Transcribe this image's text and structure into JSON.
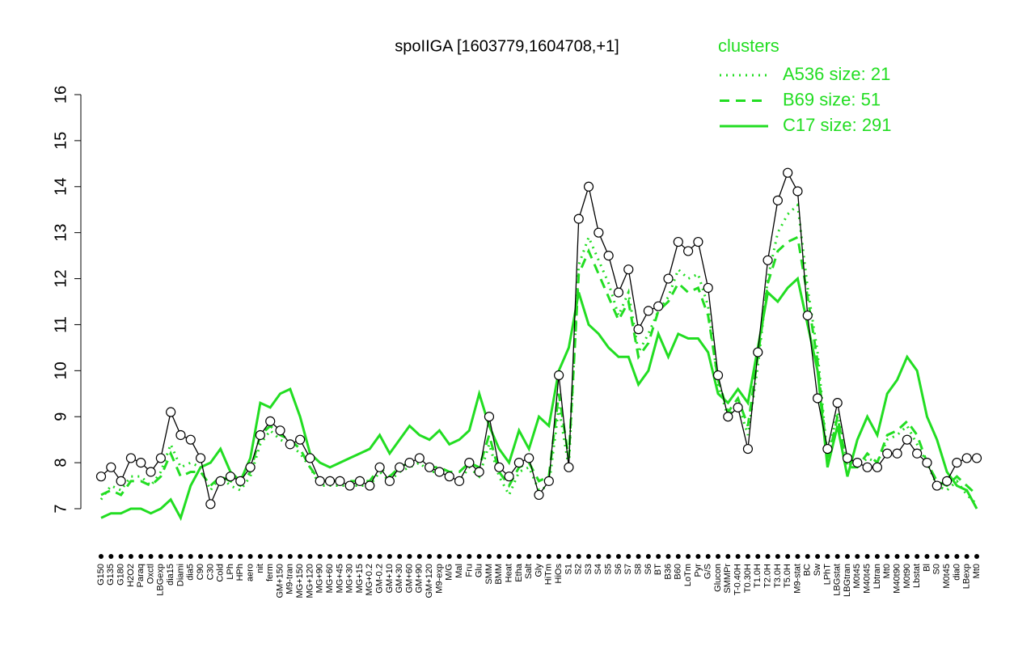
{
  "chart_data": {
    "type": "line",
    "title": "spoIIGA [1603779,1604708,+1]",
    "legend_title": "clusters",
    "legend": "top-right",
    "line_color": "#000000",
    "marker_fill": "#ffffff",
    "categories": [
      "G150",
      "G135",
      "G180",
      "H2O2",
      "Paraq",
      "Oxctl",
      "LBGexp",
      "dia15",
      "Diami",
      "dia5",
      "C90",
      "C30",
      "Cold",
      "LPh",
      "HPh",
      "aero",
      "nit",
      "ferm",
      "GM+150",
      "M9-tran",
      "MG+150",
      "MG+120",
      "MG+90",
      "MG+60",
      "MG+45",
      "MG+30",
      "MG+15",
      "MG+0.2",
      "GM-0.2",
      "GM+10",
      "GM+30",
      "GM+60",
      "GM+90",
      "GM+120",
      "M9-exp",
      "M/G",
      "Mal",
      "Fru",
      "Glu",
      "SMM",
      "BMM",
      "Heat",
      "Etha",
      "Salt",
      "Gly",
      "HiTm",
      "HiOs",
      "S1",
      "S2",
      "S3",
      "S4",
      "S5",
      "S6",
      "S7",
      "S8",
      "S6",
      "BT",
      "B36",
      "B60",
      "LoTm",
      "Pyr",
      "G/S",
      "Glucon",
      "SMMPr",
      "T-0.40H",
      "T0.30H",
      "T1.0H",
      "T2.0H",
      "T3.0H",
      "T5.0H",
      "M9-stat",
      "BC",
      "Sw",
      "LPhT",
      "LBGstat",
      "LBGtran",
      "M0t45",
      "M40t45",
      "Lbtran",
      "Mt0",
      "M40t90",
      "M0t90",
      "Lbstat",
      "Bl",
      "S0",
      "M0t45",
      "dia0",
      "LBexp",
      "Mt0"
    ],
    "values": [
      7.7,
      7.9,
      7.6,
      8.1,
      8.0,
      7.8,
      8.1,
      9.1,
      8.6,
      8.5,
      8.1,
      7.1,
      7.6,
      7.7,
      7.6,
      7.9,
      8.6,
      8.9,
      8.7,
      8.4,
      8.5,
      8.1,
      7.6,
      7.6,
      7.6,
      7.5,
      7.6,
      7.5,
      7.9,
      7.6,
      7.9,
      8.0,
      8.1,
      7.9,
      7.8,
      7.7,
      7.6,
      8.0,
      7.8,
      9.0,
      7.9,
      7.7,
      8.0,
      8.1,
      7.3,
      7.6,
      9.9,
      7.9,
      13.3,
      14.0,
      13.0,
      12.5,
      11.7,
      12.2,
      10.9,
      11.3,
      11.4,
      12.0,
      12.8,
      12.6,
      12.8,
      11.8,
      9.9,
      9.0,
      9.2,
      8.3,
      10.4,
      12.4,
      13.7,
      14.3,
      13.9,
      11.2,
      9.4,
      8.3,
      9.3,
      8.1,
      8.0,
      7.9,
      7.9,
      8.2,
      8.2,
      8.5,
      8.2,
      8.0,
      7.5,
      7.6,
      8.0,
      8.1,
      8.1
    ],
    "series": [
      {
        "name": "A536 size: 21",
        "color": "#22dd22",
        "dash": "dotted",
        "values": [
          7.2,
          7.5,
          7.4,
          7.7,
          7.7,
          7.5,
          7.8,
          8.4,
          7.9,
          8.0,
          7.9,
          7.4,
          7.7,
          7.5,
          7.4,
          7.7,
          8.4,
          8.7,
          8.5,
          8.4,
          8.2,
          7.9,
          7.5,
          7.5,
          7.5,
          7.5,
          7.5,
          7.5,
          7.8,
          7.6,
          7.8,
          7.9,
          8.0,
          7.8,
          7.8,
          7.7,
          7.6,
          7.9,
          7.7,
          8.4,
          7.7,
          7.3,
          7.8,
          7.9,
          7.4,
          7.5,
          9.2,
          7.9,
          12.3,
          12.9,
          12.4,
          11.9,
          11.2,
          11.7,
          10.4,
          10.8,
          11.3,
          11.6,
          12.2,
          12.0,
          12.1,
          11.4,
          9.7,
          9.0,
          9.3,
          8.6,
          10.1,
          12.0,
          13.0,
          13.4,
          13.6,
          11.8,
          10.4,
          8.1,
          9.1,
          8.0,
          7.9,
          8.1,
          8.0,
          8.5,
          8.6,
          8.8,
          8.4,
          8.0,
          7.5,
          7.4,
          7.6,
          7.3,
          7.1
        ]
      },
      {
        "name": "B69 size: 51",
        "color": "#22dd22",
        "dash": "dashed",
        "values": [
          7.3,
          7.4,
          7.3,
          7.6,
          7.6,
          7.5,
          7.7,
          8.2,
          7.7,
          7.8,
          7.8,
          7.5,
          7.7,
          7.6,
          7.5,
          7.8,
          8.6,
          8.8,
          8.6,
          8.5,
          8.3,
          7.9,
          7.6,
          7.6,
          7.6,
          7.6,
          7.6,
          7.6,
          7.9,
          7.7,
          7.9,
          8.0,
          8.1,
          7.9,
          7.9,
          7.8,
          7.8,
          8.0,
          7.9,
          8.6,
          7.8,
          7.5,
          7.9,
          8.0,
          7.6,
          7.7,
          9.5,
          8.1,
          12.1,
          12.6,
          12.1,
          11.6,
          11.1,
          11.5,
          10.3,
          10.6,
          11.3,
          11.5,
          11.9,
          11.7,
          11.8,
          11.2,
          9.8,
          9.1,
          9.4,
          8.8,
          10.3,
          11.9,
          12.6,
          12.8,
          12.9,
          11.6,
          10.2,
          8.0,
          9.0,
          7.9,
          7.9,
          8.2,
          8.0,
          8.6,
          8.7,
          8.9,
          8.6,
          8.0,
          7.6,
          7.5,
          7.7,
          7.5,
          7.3
        ]
      },
      {
        "name": "C17 size: 291",
        "color": "#22dd22",
        "dash": "solid",
        "values": [
          6.8,
          6.9,
          6.9,
          7.0,
          7.0,
          6.9,
          7.0,
          7.2,
          6.8,
          7.5,
          7.9,
          8.0,
          8.3,
          7.8,
          7.6,
          8.1,
          9.3,
          9.2,
          9.5,
          9.6,
          9.0,
          8.2,
          8.0,
          7.9,
          8.0,
          8.1,
          8.2,
          8.3,
          8.6,
          8.2,
          8.5,
          8.8,
          8.6,
          8.5,
          8.7,
          8.4,
          8.5,
          8.7,
          9.5,
          8.8,
          8.3,
          8.0,
          8.7,
          8.3,
          9.0,
          8.8,
          10.0,
          10.5,
          11.7,
          11.0,
          10.8,
          10.5,
          10.3,
          10.3,
          9.7,
          10.0,
          10.8,
          10.3,
          10.8,
          10.7,
          10.7,
          10.4,
          9.5,
          9.3,
          9.6,
          9.3,
          10.5,
          11.7,
          11.5,
          11.8,
          12.0,
          11.0,
          10.0,
          7.9,
          8.8,
          7.7,
          8.5,
          9.0,
          8.6,
          9.5,
          9.8,
          10.3,
          10.0,
          9.0,
          8.5,
          7.8,
          7.5,
          7.4,
          7.0
        ]
      }
    ],
    "ylim": [
      7,
      16
    ],
    "yticks": [
      7,
      8,
      9,
      10,
      11,
      12,
      13,
      14,
      15,
      16
    ]
  }
}
